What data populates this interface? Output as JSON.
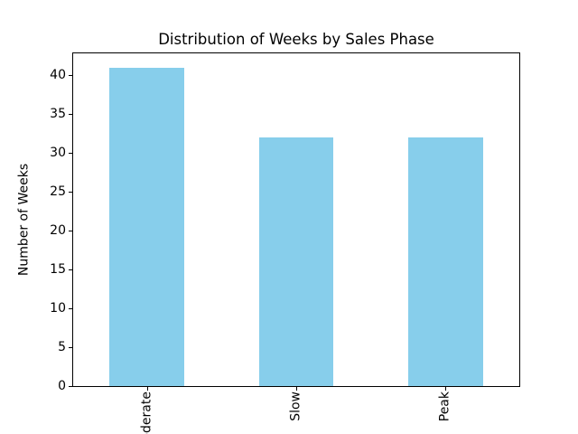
{
  "chart_data": {
    "type": "bar",
    "title": "Distribution of Weeks by Sales Phase",
    "xlabel": "",
    "ylabel": "Number of Weeks",
    "categories": [
      "Moderate",
      "Slow",
      "Peak"
    ],
    "values": [
      41,
      32,
      32
    ],
    "yticks": [
      0,
      5,
      10,
      15,
      20,
      25,
      30,
      35,
      40
    ],
    "ylim": [
      0,
      43.05
    ],
    "bar_color": "#87ceeb",
    "grid": false,
    "legend": false,
    "x_tick_rotation": 90,
    "note_clipping": "first x tick label is clipped by the bottom edge of the figure"
  }
}
